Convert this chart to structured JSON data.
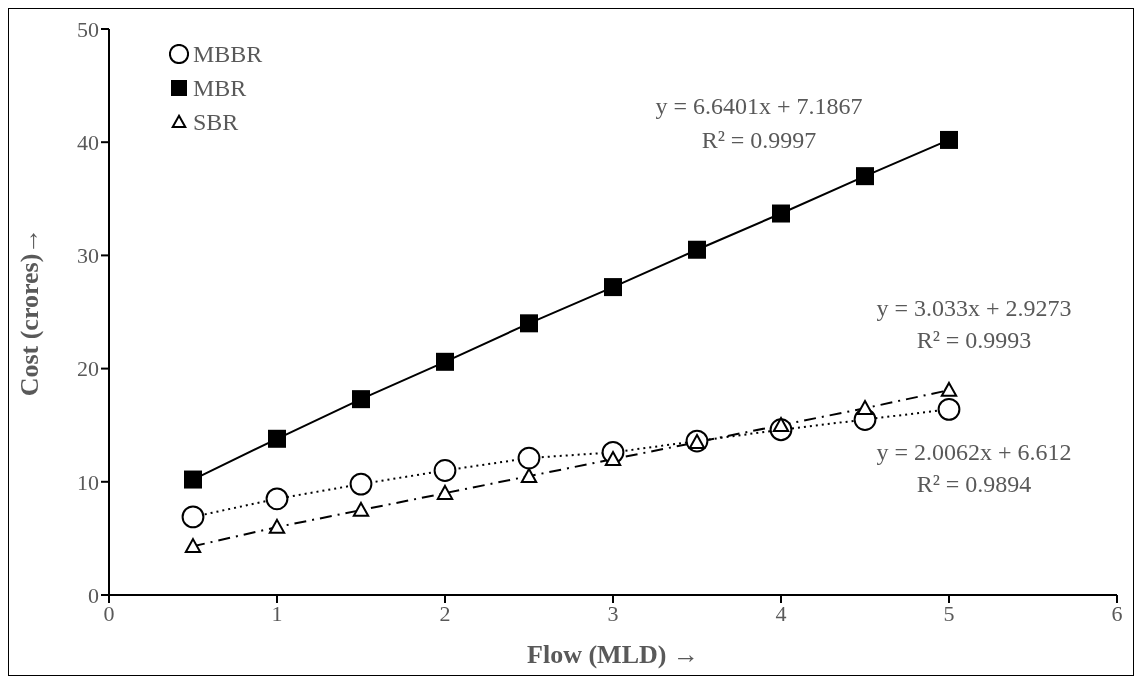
{
  "chart_data": {
    "type": "line",
    "xlabel": "Flow (MLD) →",
    "ylabel": "Cost (crores)→",
    "x": [
      0.5,
      1,
      1.5,
      2,
      2.5,
      3,
      3.5,
      4,
      4.5,
      5
    ],
    "series": [
      {
        "name": "MBBR",
        "color": "#000000",
        "marker": "circle",
        "line_style": "dotted",
        "values": [
          6.9,
          8.5,
          9.8,
          11.0,
          12.1,
          12.6,
          13.6,
          14.6,
          15.5,
          16.4
        ]
      },
      {
        "name": "MBR",
        "color": "#000000",
        "marker": "square",
        "line_style": "solid",
        "values": [
          10.2,
          13.8,
          17.3,
          20.6,
          24.0,
          27.2,
          30.5,
          33.7,
          37.0,
          40.2
        ]
      },
      {
        "name": "SBR",
        "color": "#000000",
        "marker": "triangle",
        "line_style": "dashed",
        "values": [
          4.3,
          6.0,
          7.5,
          9.0,
          10.5,
          12.0,
          13.5,
          15.0,
          16.5,
          18.1
        ]
      }
    ],
    "xlim": [
      0,
      6
    ],
    "xticks": [
      0,
      1,
      2,
      3,
      4,
      5,
      6
    ],
    "ylim": [
      0,
      50
    ],
    "yticks": [
      0,
      10,
      20,
      30,
      40,
      50
    ],
    "grid": false,
    "legend": "top left",
    "annotations": [
      "y = 6.6401x + 7.1867",
      "R² = 0.9997",
      "y = 3.033x + 2.9273",
      "R² = 0.9993",
      "y = 2.0062x + 6.612",
      "R² = 0.9894"
    ]
  }
}
